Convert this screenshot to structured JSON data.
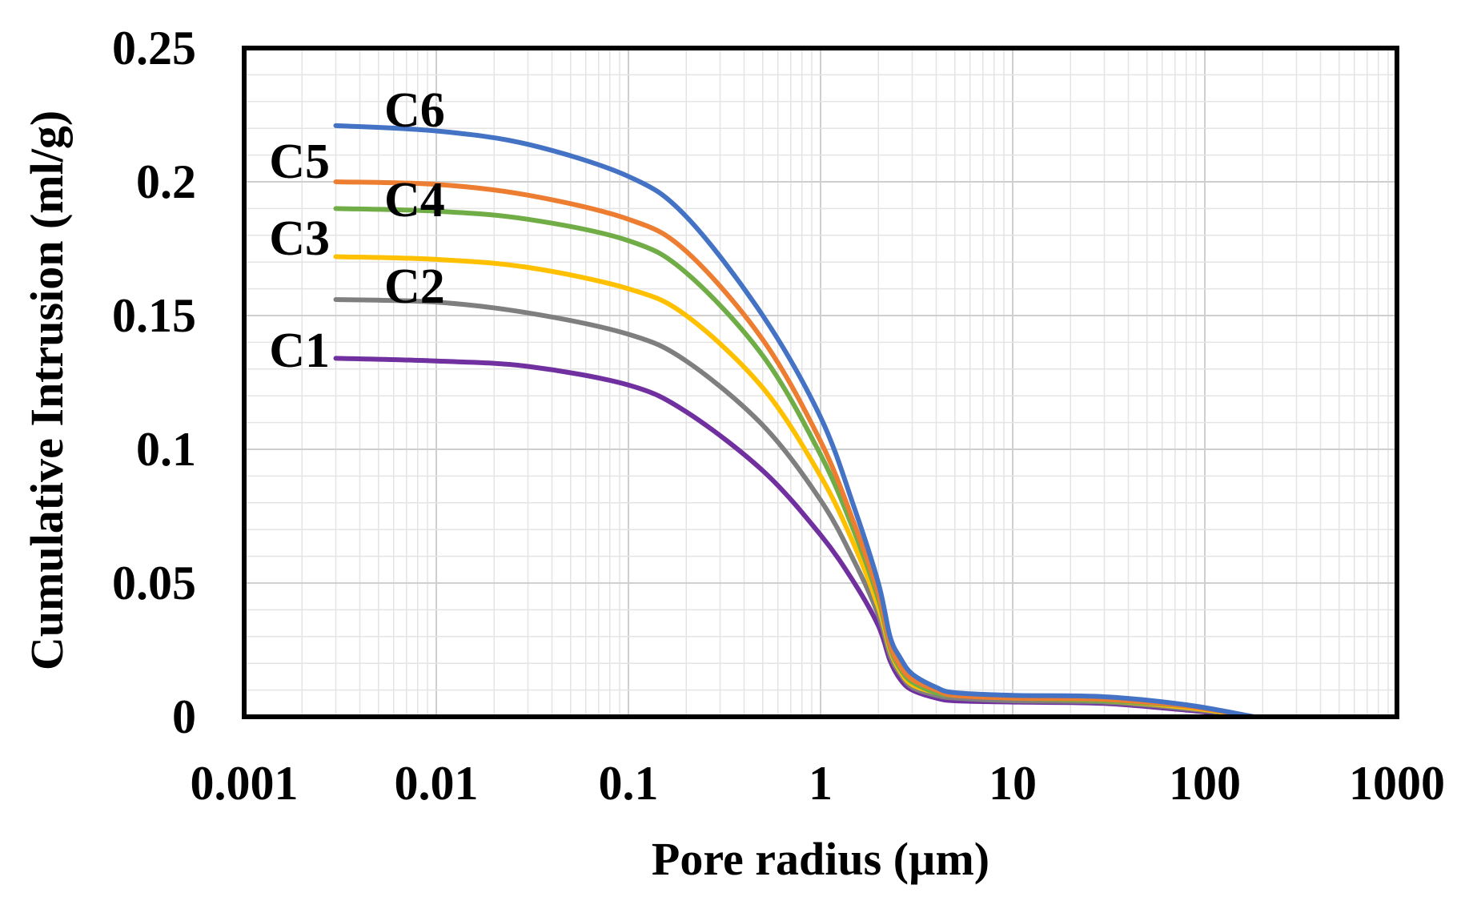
{
  "chart_data": {
    "type": "line",
    "title": "",
    "xlabel": "Pore radius (µm)",
    "ylabel": "Cumulative Intrusion (ml/g)",
    "x_scale": "log",
    "xlim": [
      0.001,
      1000
    ],
    "ylim": [
      0,
      0.25
    ],
    "grid": true,
    "x_ticks": [
      0.001,
      0.01,
      0.1,
      1,
      10,
      100,
      1000
    ],
    "x_tick_labels": [
      "0.001",
      "0.01",
      "0.1",
      "1",
      "10",
      "100",
      "1000"
    ],
    "y_ticks": [
      0,
      0.05,
      0.1,
      0.15,
      0.2,
      0.25
    ],
    "y_tick_labels": [
      "0",
      "0.05",
      "0.1",
      "0.15",
      "0.2",
      "0.25"
    ],
    "x": [
      0.003,
      0.01,
      0.03,
      0.1,
      0.2,
      0.5,
      1,
      1.5,
      2,
      2.3,
      2.6,
      3,
      4,
      5,
      10,
      30,
      80,
      180
    ],
    "series": [
      {
        "name": "C6",
        "color": "#4472C4",
        "values": [
          0.221,
          0.219,
          0.214,
          0.202,
          0.187,
          0.15,
          0.112,
          0.078,
          0.05,
          0.03,
          0.022,
          0.016,
          0.011,
          0.009,
          0.008,
          0.0075,
          0.0045,
          0
        ]
      },
      {
        "name": "C5",
        "color": "#ED7D31",
        "values": [
          0.2,
          0.199,
          0.195,
          0.186,
          0.174,
          0.141,
          0.103,
          0.072,
          0.046,
          0.027,
          0.019,
          0.014,
          0.01,
          0.008,
          0.007,
          0.0065,
          0.004,
          0
        ]
      },
      {
        "name": "C4",
        "color": "#70AD47",
        "values": [
          0.19,
          0.189,
          0.186,
          0.178,
          0.166,
          0.135,
          0.098,
          0.069,
          0.044,
          0.026,
          0.018,
          0.013,
          0.009,
          0.008,
          0.007,
          0.006,
          0.004,
          0
        ]
      },
      {
        "name": "C3",
        "color": "#FFC000",
        "values": [
          0.172,
          0.171,
          0.168,
          0.16,
          0.15,
          0.123,
          0.09,
          0.064,
          0.041,
          0.025,
          0.017,
          0.012,
          0.009,
          0.008,
          0.007,
          0.006,
          0.0035,
          0
        ]
      },
      {
        "name": "C2",
        "color": "#7F7F7F",
        "values": [
          0.156,
          0.155,
          0.151,
          0.143,
          0.133,
          0.109,
          0.081,
          0.058,
          0.038,
          0.023,
          0.016,
          0.011,
          0.008,
          0.007,
          0.006,
          0.0055,
          0.003,
          0
        ]
      },
      {
        "name": "C1",
        "color": "#7030A0",
        "values": [
          0.134,
          0.133,
          0.131,
          0.124,
          0.114,
          0.092,
          0.068,
          0.05,
          0.034,
          0.021,
          0.014,
          0.01,
          0.007,
          0.006,
          0.0055,
          0.005,
          0.0025,
          0
        ]
      }
    ]
  }
}
